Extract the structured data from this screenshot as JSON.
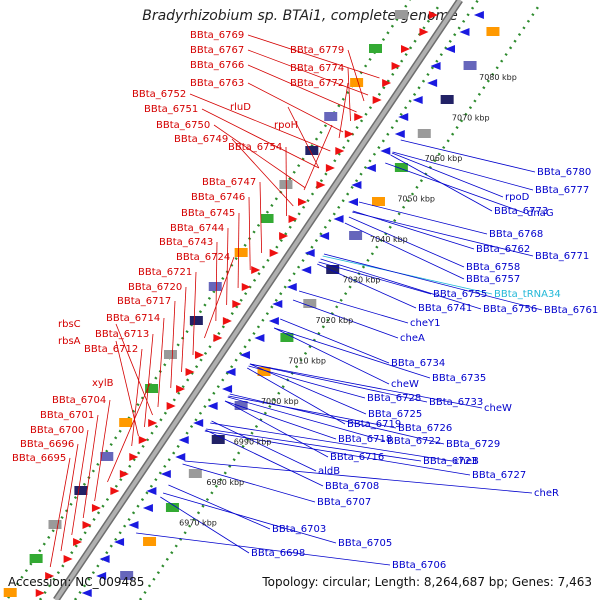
{
  "title": "Bradyrhizobium sp. BTAi1, complete genome",
  "footer": {
    "accession": "Accession: NC_009485",
    "summary": "Topology: circular; Length: 8,264,687 bp; Genes: 7,463"
  },
  "colors": {
    "left_label": "#d40000",
    "right_label": "#0000cc",
    "rna_label": "#22b8d8",
    "backbone": "#9a9a9a",
    "dots": "#2e8b2e",
    "forward_feature": "#ee1111",
    "reverse_feature": "#1a1ae0"
  },
  "kbp_ticks": [
    "7080 kbp",
    "7070 kbp",
    "7060 kbp",
    "7050 kbp",
    "7040 kbp",
    "7030 kbp",
    "7020 kbp",
    "7010 kbp",
    "7000 kbp",
    "6990 kbp",
    "6980 kbp",
    "6970 kbp"
  ],
  "left_labels": [
    "BBta_6769",
    "BBta_6767",
    "BBta_6766",
    "BBta_6763",
    "BBta_6779",
    "BBta_6774",
    "BBta_6772",
    "BBta_6752",
    "BBta_6751",
    "rluD",
    "BBta_6750",
    "rpoH",
    "BBta_6749",
    "BBta_6754",
    "BBta_6747",
    "BBta_6746",
    "BBta_6745",
    "BBta_6744",
    "BBta_6743",
    "BBta_6724",
    "BBta_6721",
    "BBta_6720",
    "BBta_6717",
    "BBta_6714",
    "rbsC",
    "BBta_6713",
    "rbsA",
    "BBta_6712",
    "xylB",
    "BBta_6704",
    "BBta_6701",
    "BBta_6700",
    "BBta_6696",
    "BBta_6695"
  ],
  "right_labels": [
    "BBta_6780",
    "BBta_6777",
    "rpoD",
    "dnaG",
    "BBta_6773",
    "BBta_6768",
    "BBta_6762",
    "BBta_6771",
    "BBta_6758",
    "BBta_6757",
    "BBta_6755",
    "BBta_tRNA34",
    "BBta_6741",
    "BBta_6756",
    "BBta_6761",
    "cheY1",
    "cheA",
    "BBta_6734",
    "BBta_6735",
    "cheW",
    "BBta_6728",
    "BBta_6733",
    "cheW",
    "BBta_6725",
    "BBta_6719",
    "BBta_6726",
    "BBta_6718",
    "BBta_6722",
    "BBta_6729",
    "BBta_6716",
    "BBta_6723",
    "cheB",
    "BBta_6727",
    "aldB",
    "BBta_6708",
    "cheR",
    "BBta_6707",
    "BBta_6703",
    "BBta_6705",
    "BBta_6698",
    "BBta_6706"
  ]
}
